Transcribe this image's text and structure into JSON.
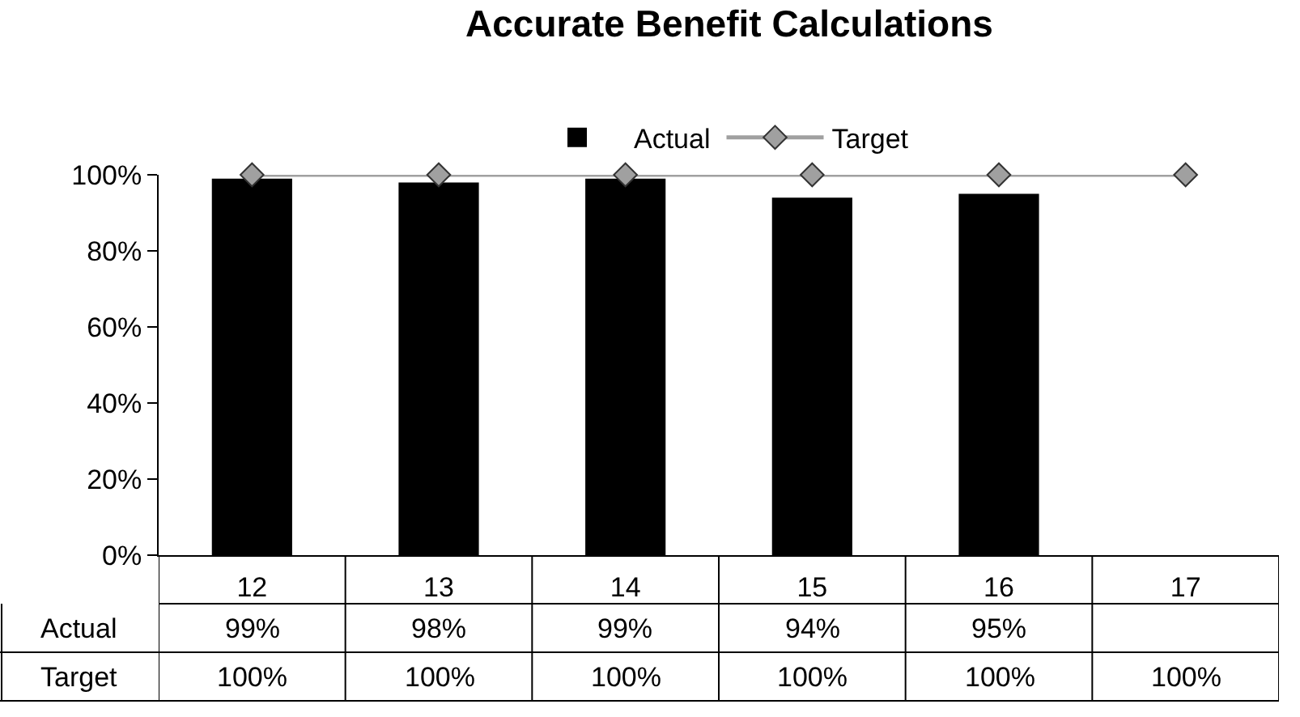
{
  "chart_data": {
    "type": "bar",
    "title": "Accurate Benefit Calculations",
    "categories": [
      "12",
      "13",
      "14",
      "15",
      "16",
      "17"
    ],
    "series": [
      {
        "name": "Actual",
        "color": "#000000",
        "values": [
          99,
          98,
          99,
          94,
          95,
          null
        ],
        "value_labels": [
          "99%",
          "98%",
          "99%",
          "94%",
          "95%",
          null
        ]
      },
      {
        "name": "Target",
        "type": "line",
        "color": "#a0a0a0",
        "marker": "diamond",
        "line_style": "solid",
        "values": [
          100,
          100,
          100,
          100,
          100,
          100
        ],
        "value_labels": [
          "100%",
          "100%",
          "100%",
          "100%",
          "100%",
          "100%"
        ]
      }
    ],
    "ylim": [
      0,
      100
    ],
    "yticks": [
      {
        "value": 0,
        "label": "0%"
      },
      {
        "value": 20,
        "label": "20%"
      },
      {
        "value": 40,
        "label": "40%"
      },
      {
        "value": 60,
        "label": "60%"
      },
      {
        "value": 80,
        "label": "80%"
      },
      {
        "value": 100,
        "label": "100%"
      }
    ],
    "grid": false,
    "legend": "top"
  }
}
